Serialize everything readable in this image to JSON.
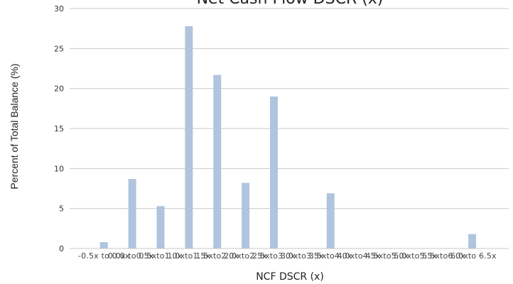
{
  "chart_data": {
    "type": "bar",
    "title": "Net Cash Flow DSCR (x)",
    "xlabel": "NCF DSCR (x)",
    "ylabel": "Percent of Total Balance (%)",
    "ylim": [
      0,
      30
    ],
    "yticks": [
      0,
      5,
      10,
      15,
      20,
      25,
      30
    ],
    "grid": true,
    "bar_color": "#b0c4de",
    "grid_color": "#c8c8c8",
    "categories": [
      "-0.5x to 0.0x",
      "0.0x to 0.5x",
      "0.5x to 1.0x",
      "1.0x to 1.5x",
      "1.5x to 2.0x",
      "2.0x to 2.5x",
      "2.5x to 3.0x",
      "3.0x to 3.5x",
      "3.5x to 4.0x",
      "4.0x to 4.5x",
      "4.5x to 5.0x",
      "5.0x to 5.5x",
      "5.5x to 6.0x",
      "6.0x to 6.5x"
    ],
    "values": [
      0.8,
      8.7,
      5.3,
      27.8,
      21.7,
      8.2,
      19.0,
      0,
      6.9,
      0,
      0,
      0,
      0,
      1.8
    ]
  }
}
